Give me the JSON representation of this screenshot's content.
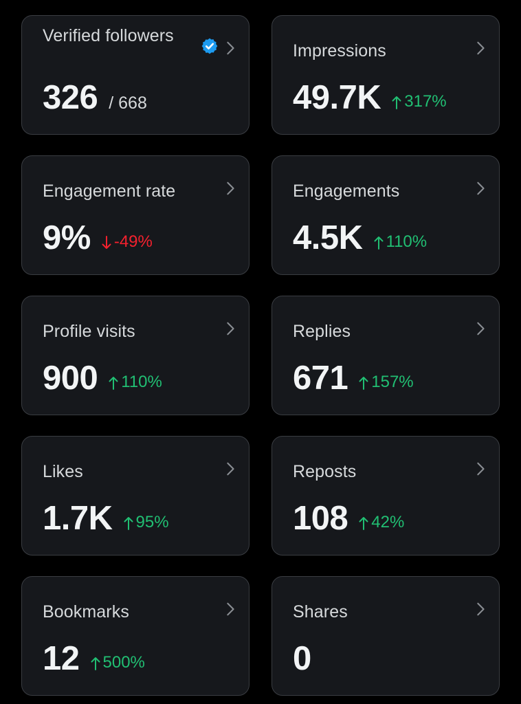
{
  "colors": {
    "background": "#000000",
    "card": "#16181c",
    "border": "#3a3d42",
    "positive": "#21bf73",
    "negative": "#f4212e",
    "verified": "#1d9bf0"
  },
  "metrics": [
    {
      "label": "Verified followers",
      "value": "326",
      "total": "/ 668",
      "badge": "verified-badge-icon"
    },
    {
      "label": "Impressions",
      "value": "49.7K",
      "change": "317%",
      "direction": "up"
    },
    {
      "label": "Engagement rate",
      "value": "9%",
      "change": "-49%",
      "direction": "down"
    },
    {
      "label": "Engagements",
      "value": "4.5K",
      "change": "110%",
      "direction": "up"
    },
    {
      "label": "Profile visits",
      "value": "900",
      "change": "110%",
      "direction": "up"
    },
    {
      "label": "Replies",
      "value": "671",
      "change": "157%",
      "direction": "up"
    },
    {
      "label": "Likes",
      "value": "1.7K",
      "change": "95%",
      "direction": "up"
    },
    {
      "label": "Reposts",
      "value": "108",
      "change": "42%",
      "direction": "up"
    },
    {
      "label": "Bookmarks",
      "value": "12",
      "change": "500%",
      "direction": "up"
    },
    {
      "label": "Shares",
      "value": "0"
    }
  ]
}
